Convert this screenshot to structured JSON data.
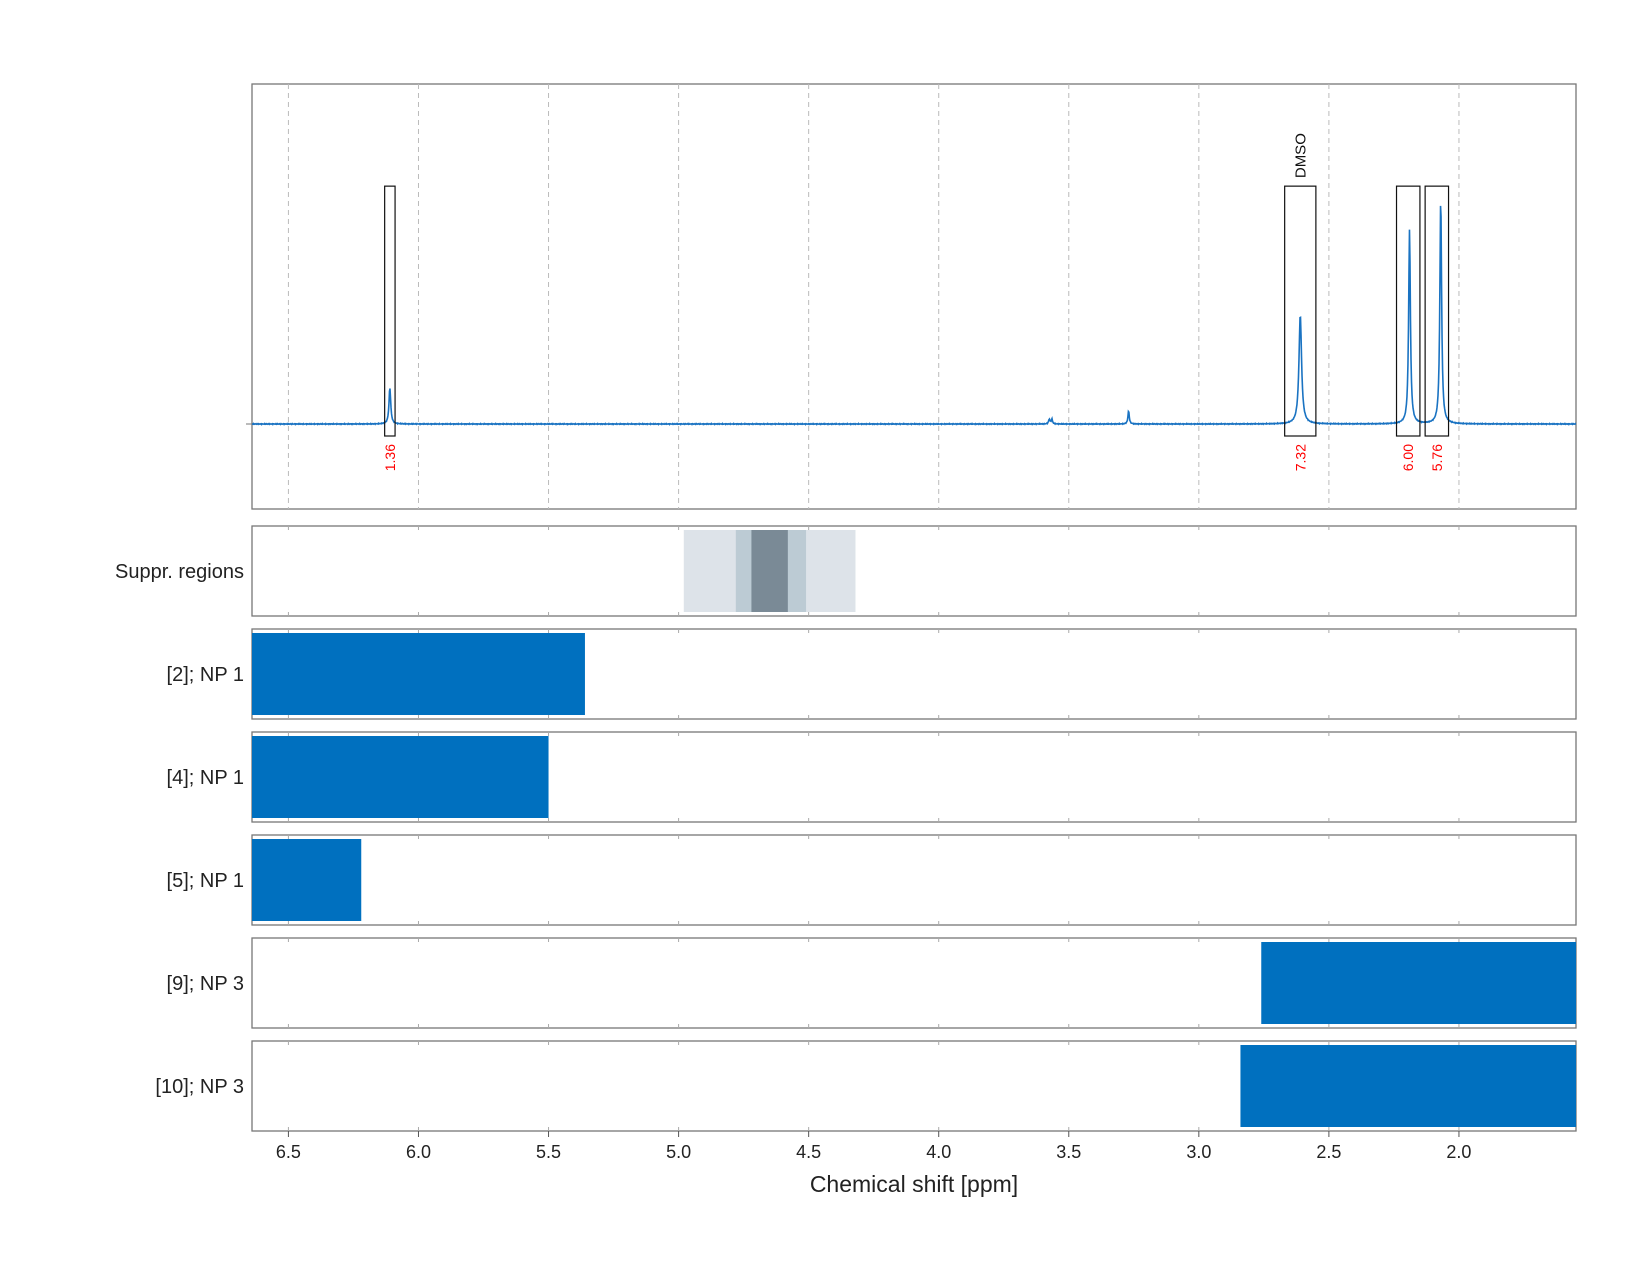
{
  "chart_data": {
    "type": "nmr-spectrum-with-bins",
    "xlabel": "Chemical shift [ppm]",
    "xlim": [
      6.64,
      1.55
    ],
    "x_ticks": [
      6.5,
      6.0,
      5.5,
      5.0,
      4.5,
      4.0,
      3.5,
      3.0,
      2.5,
      2.0
    ],
    "x_tick_labels": [
      "6.5",
      "6.0",
      "5.5",
      "5.0",
      "4.5",
      "4.0",
      "3.5",
      "3.0",
      "2.5",
      "2.0"
    ],
    "grid": true,
    "line_color": "#1a73c2",
    "bar_color": "#0070bf",
    "integral_label_color": "#ff0000",
    "spectrum": {
      "baseline": 0,
      "ylim": [
        -0.35,
        1.4
      ],
      "peaks": [
        {
          "ppm": 6.11,
          "height": 0.15,
          "width": 0.004
        },
        {
          "ppm": 3.575,
          "height": 0.02,
          "width": 0.003
        },
        {
          "ppm": 3.565,
          "height": 0.02,
          "width": 0.003
        },
        {
          "ppm": 3.27,
          "height": 0.055,
          "width": 0.003
        },
        {
          "ppm": 2.61,
          "height": 0.45,
          "width": 0.006
        },
        {
          "ppm": 2.19,
          "height": 0.8,
          "width": 0.004
        },
        {
          "ppm": 2.07,
          "height": 0.93,
          "width": 0.004
        }
      ],
      "integration_boxes": [
        {
          "ppm_min": 6.09,
          "ppm_max": 6.13,
          "label": "1.36",
          "name": ""
        },
        {
          "ppm_min": 2.55,
          "ppm_max": 2.67,
          "label": "7.32",
          "name": "DMSO"
        },
        {
          "ppm_min": 2.15,
          "ppm_max": 2.24,
          "label": "6.00",
          "name": ""
        },
        {
          "ppm_min": 2.04,
          "ppm_max": 2.13,
          "label": "5.76",
          "name": ""
        }
      ]
    },
    "suppression_regions": {
      "label": "Suppr. regions",
      "bands": [
        {
          "ppm_min": 4.32,
          "ppm_max": 4.98,
          "color": "#dde3e9"
        },
        {
          "ppm_min": 4.51,
          "ppm_max": 4.78,
          "color": "#bccbd4"
        },
        {
          "ppm_min": 4.58,
          "ppm_max": 4.72,
          "color": "#7a8a96"
        }
      ]
    },
    "bins": [
      {
        "label": "[2]; NP 1",
        "ppm_min": 5.36,
        "ppm_max": 6.64
      },
      {
        "label": "[4]; NP 1",
        "ppm_min": 5.5,
        "ppm_max": 6.64
      },
      {
        "label": "[5]; NP 1",
        "ppm_min": 6.22,
        "ppm_max": 6.64
      },
      {
        "label": "[9]; NP 3",
        "ppm_min": 1.55,
        "ppm_max": 2.76
      },
      {
        "label": "[10]; NP 3",
        "ppm_min": 1.55,
        "ppm_max": 2.84
      }
    ]
  }
}
